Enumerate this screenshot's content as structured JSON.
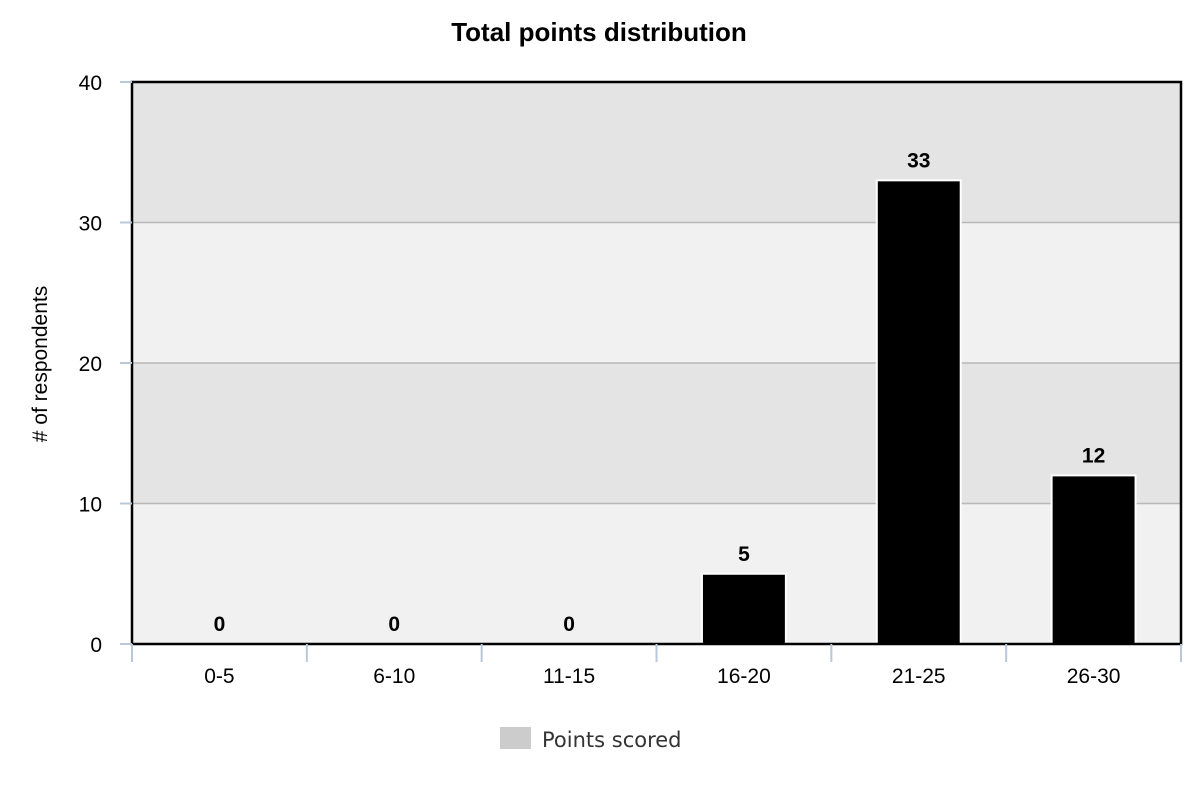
{
  "chart_data": {
    "type": "bar",
    "title": "Total points distribution",
    "xlabel": "",
    "ylabel": "# of respondents",
    "categories": [
      "0-5",
      "6-10",
      "11-15",
      "16-20",
      "21-25",
      "26-30"
    ],
    "series": [
      {
        "name": "Points scored",
        "values": [
          0,
          0,
          0,
          5,
          33,
          12
        ]
      }
    ],
    "ylim": [
      0,
      40
    ],
    "yticks": [
      0,
      10,
      20,
      30,
      40
    ],
    "grid": true,
    "legend": "bottom-center",
    "data_labels": true,
    "colors": {
      "bar_fill": "#000000",
      "bar_stroke": "#ffffff",
      "band_dark": "#e4e4e4",
      "band_light": "#f1f1f1",
      "gridline": "#b8b8b8",
      "axis": "#000000",
      "tick": "#b8c8d8",
      "legend_swatch": "#cccccc"
    }
  }
}
